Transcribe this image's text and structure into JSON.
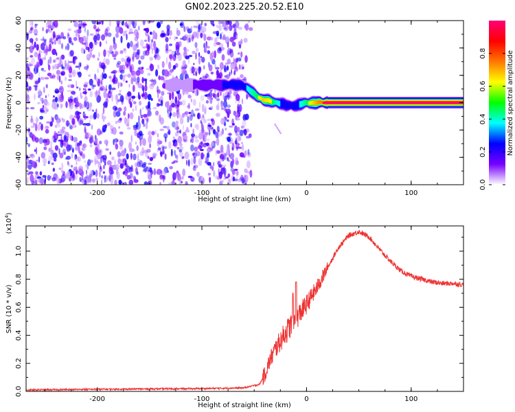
{
  "figure_title": "GN02.2023.225.20.52.E10",
  "chart_data": [
    {
      "type": "heatmap",
      "xlabel": "Height of straight line (km)",
      "ylabel": "Frequency (Hz)",
      "xlim": [
        -268,
        150
      ],
      "ylim": [
        -60,
        60
      ],
      "xticks": [
        -200,
        -100,
        0,
        100
      ],
      "xtick_labels": [
        "-200",
        "-100",
        "0",
        "100"
      ],
      "yticks": [
        -60,
        -40,
        -20,
        0,
        20,
        40,
        60
      ],
      "ytick_labels": [
        "-60",
        "-40",
        "-20",
        "0",
        "20",
        "40",
        "60"
      ],
      "colorbar": {
        "label": "Normalized spectral amplitude",
        "range": [
          0,
          1
        ],
        "ticks": [
          0,
          0.2,
          0.4,
          0.6,
          0.8
        ],
        "tick_labels": [
          "0.0",
          "0.2",
          "0.4",
          "0.6",
          "0.8"
        ],
        "colors": [
          "#ffffff",
          "#7700ff",
          "#0000ff",
          "#00ffff",
          "#00ff00",
          "#ffff00",
          "#ff7700",
          "#ff0000",
          "#ff0077"
        ]
      },
      "noise_region_x": [
        -268,
        -62
      ],
      "ridge": {
        "x": [
          -135,
          -100,
          -75,
          -62,
          -55,
          -48,
          -42,
          -35,
          -28,
          -20,
          -10,
          0,
          10,
          20,
          60,
          100,
          150
        ],
        "freq": [
          13,
          13,
          13,
          13,
          9,
          5,
          2,
          1,
          0,
          -2,
          -2,
          0,
          0,
          0,
          0,
          0,
          0
        ],
        "amplitude": [
          0.15,
          0.25,
          0.45,
          0.5,
          0.6,
          0.7,
          0.8,
          0.75,
          0.6,
          0.45,
          0.5,
          0.7,
          0.85,
          0.95,
          0.95,
          0.95,
          0.95
        ]
      }
    },
    {
      "type": "line",
      "xlabel": "Height of straight line (km)",
      "ylabel": "SNR (10 * v/v)",
      "y_multiplier": "(x10",
      "y_multiplier_exp": "4",
      "y_multiplier_close": ")",
      "xlim": [
        -268,
        150
      ],
      "ylim": [
        0,
        1.18
      ],
      "xticks": [
        -200,
        -100,
        0,
        100
      ],
      "xtick_labels": [
        "-200",
        "-100",
        "0",
        "100"
      ],
      "yticks": [
        0,
        0.2,
        0.4,
        0.6,
        0.8,
        1.0
      ],
      "ytick_labels": [
        "0.0",
        "0.2",
        "0.4",
        "0.6",
        "0.8",
        "1.0"
      ],
      "line_color": "#ee3333",
      "series": [
        {
          "x": [
            -268,
            -200,
            -100,
            -60,
            -45,
            -40,
            -35,
            -30,
            -25,
            -20,
            -15,
            -10,
            -5,
            0,
            10,
            20,
            30,
            40,
            50,
            60,
            70,
            80,
            90,
            100,
            110,
            120,
            130,
            140,
            150
          ],
          "values": [
            0.01,
            0.015,
            0.02,
            0.025,
            0.05,
            0.12,
            0.22,
            0.3,
            0.36,
            0.42,
            0.47,
            0.52,
            0.57,
            0.62,
            0.74,
            0.88,
            1.02,
            1.11,
            1.14,
            1.1,
            1.01,
            0.93,
            0.86,
            0.82,
            0.8,
            0.78,
            0.77,
            0.77,
            0.76
          ]
        }
      ]
    }
  ]
}
